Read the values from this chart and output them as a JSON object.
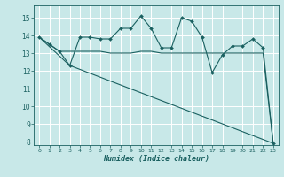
{
  "xlabel": "Humidex (Indice chaleur)",
  "background_color": "#c8e8e8",
  "grid_color": "#ffffff",
  "line_color": "#1a6060",
  "xlim": [
    -0.5,
    23.5
  ],
  "ylim": [
    7.8,
    15.7
  ],
  "xticks": [
    0,
    1,
    2,
    3,
    4,
    5,
    6,
    7,
    8,
    9,
    10,
    11,
    12,
    13,
    14,
    15,
    16,
    17,
    18,
    19,
    20,
    21,
    22,
    23
  ],
  "yticks": [
    8,
    9,
    10,
    11,
    12,
    13,
    14,
    15
  ],
  "curve1_x": [
    0,
    1,
    2,
    3,
    4,
    5,
    6,
    7,
    8,
    9,
    10,
    11,
    12,
    13,
    14,
    15,
    16,
    17,
    18,
    19,
    20,
    21,
    22,
    23
  ],
  "curve1_y": [
    13.9,
    13.5,
    13.1,
    12.3,
    13.9,
    13.9,
    13.8,
    13.8,
    14.4,
    14.4,
    15.1,
    14.4,
    13.3,
    13.3,
    15.0,
    14.8,
    13.9,
    11.9,
    12.9,
    13.4,
    13.4,
    13.8,
    13.3,
    7.9
  ],
  "curve2_x": [
    0,
    1,
    2,
    3,
    4,
    5,
    6,
    7,
    8,
    9,
    10,
    11,
    12,
    13,
    14,
    15,
    16,
    17,
    18,
    19,
    20,
    21,
    22,
    23
  ],
  "curve2_y": [
    13.9,
    13.5,
    13.1,
    13.1,
    13.1,
    13.1,
    13.1,
    13.0,
    13.0,
    13.0,
    13.1,
    13.1,
    13.0,
    13.0,
    13.0,
    13.0,
    13.0,
    13.0,
    13.0,
    13.0,
    13.0,
    13.0,
    13.0,
    7.9
  ],
  "curve3_x": [
    0,
    3,
    23
  ],
  "curve3_y": [
    13.9,
    12.3,
    7.9
  ]
}
